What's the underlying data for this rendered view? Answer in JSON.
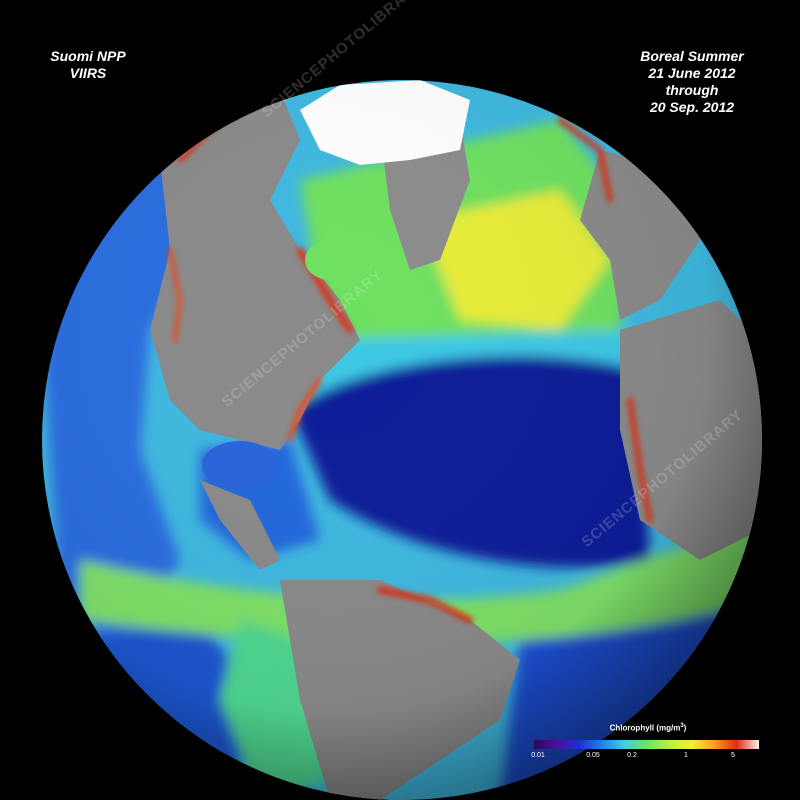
{
  "caption_left": {
    "line1": "Suomi NPP",
    "line2": "VIIRS"
  },
  "caption_right": {
    "line1": "Boreal Summer",
    "line2": "21 June 2012",
    "line3": "through",
    "line4": "20 Sep. 2012"
  },
  "legend": {
    "title": "Chlorophyll (mg/m",
    "title_sup": "3",
    "title_close": ")",
    "ticks": [
      "0.01",
      "0.05",
      "0.2",
      "1",
      "5"
    ],
    "colors": [
      "#2a0a57",
      "#4b0fa0",
      "#1d2fd0",
      "#1f7fe8",
      "#3fd0e0",
      "#6ee06a",
      "#b8f040",
      "#f5f030",
      "#f8a020",
      "#e52a12",
      "#f7f0e8"
    ]
  },
  "watermark": "SCIENCEPHOTOLIBRARY",
  "colors": {
    "deep_ocean": "#0a1a8c",
    "ocean_blue": "#1e4fd8",
    "cyan": "#3ec8e6",
    "green": "#6ee060",
    "yellow": "#f0f030",
    "red": "#e02a10",
    "land": "#8a8a8a",
    "ice": "#ffffff"
  }
}
